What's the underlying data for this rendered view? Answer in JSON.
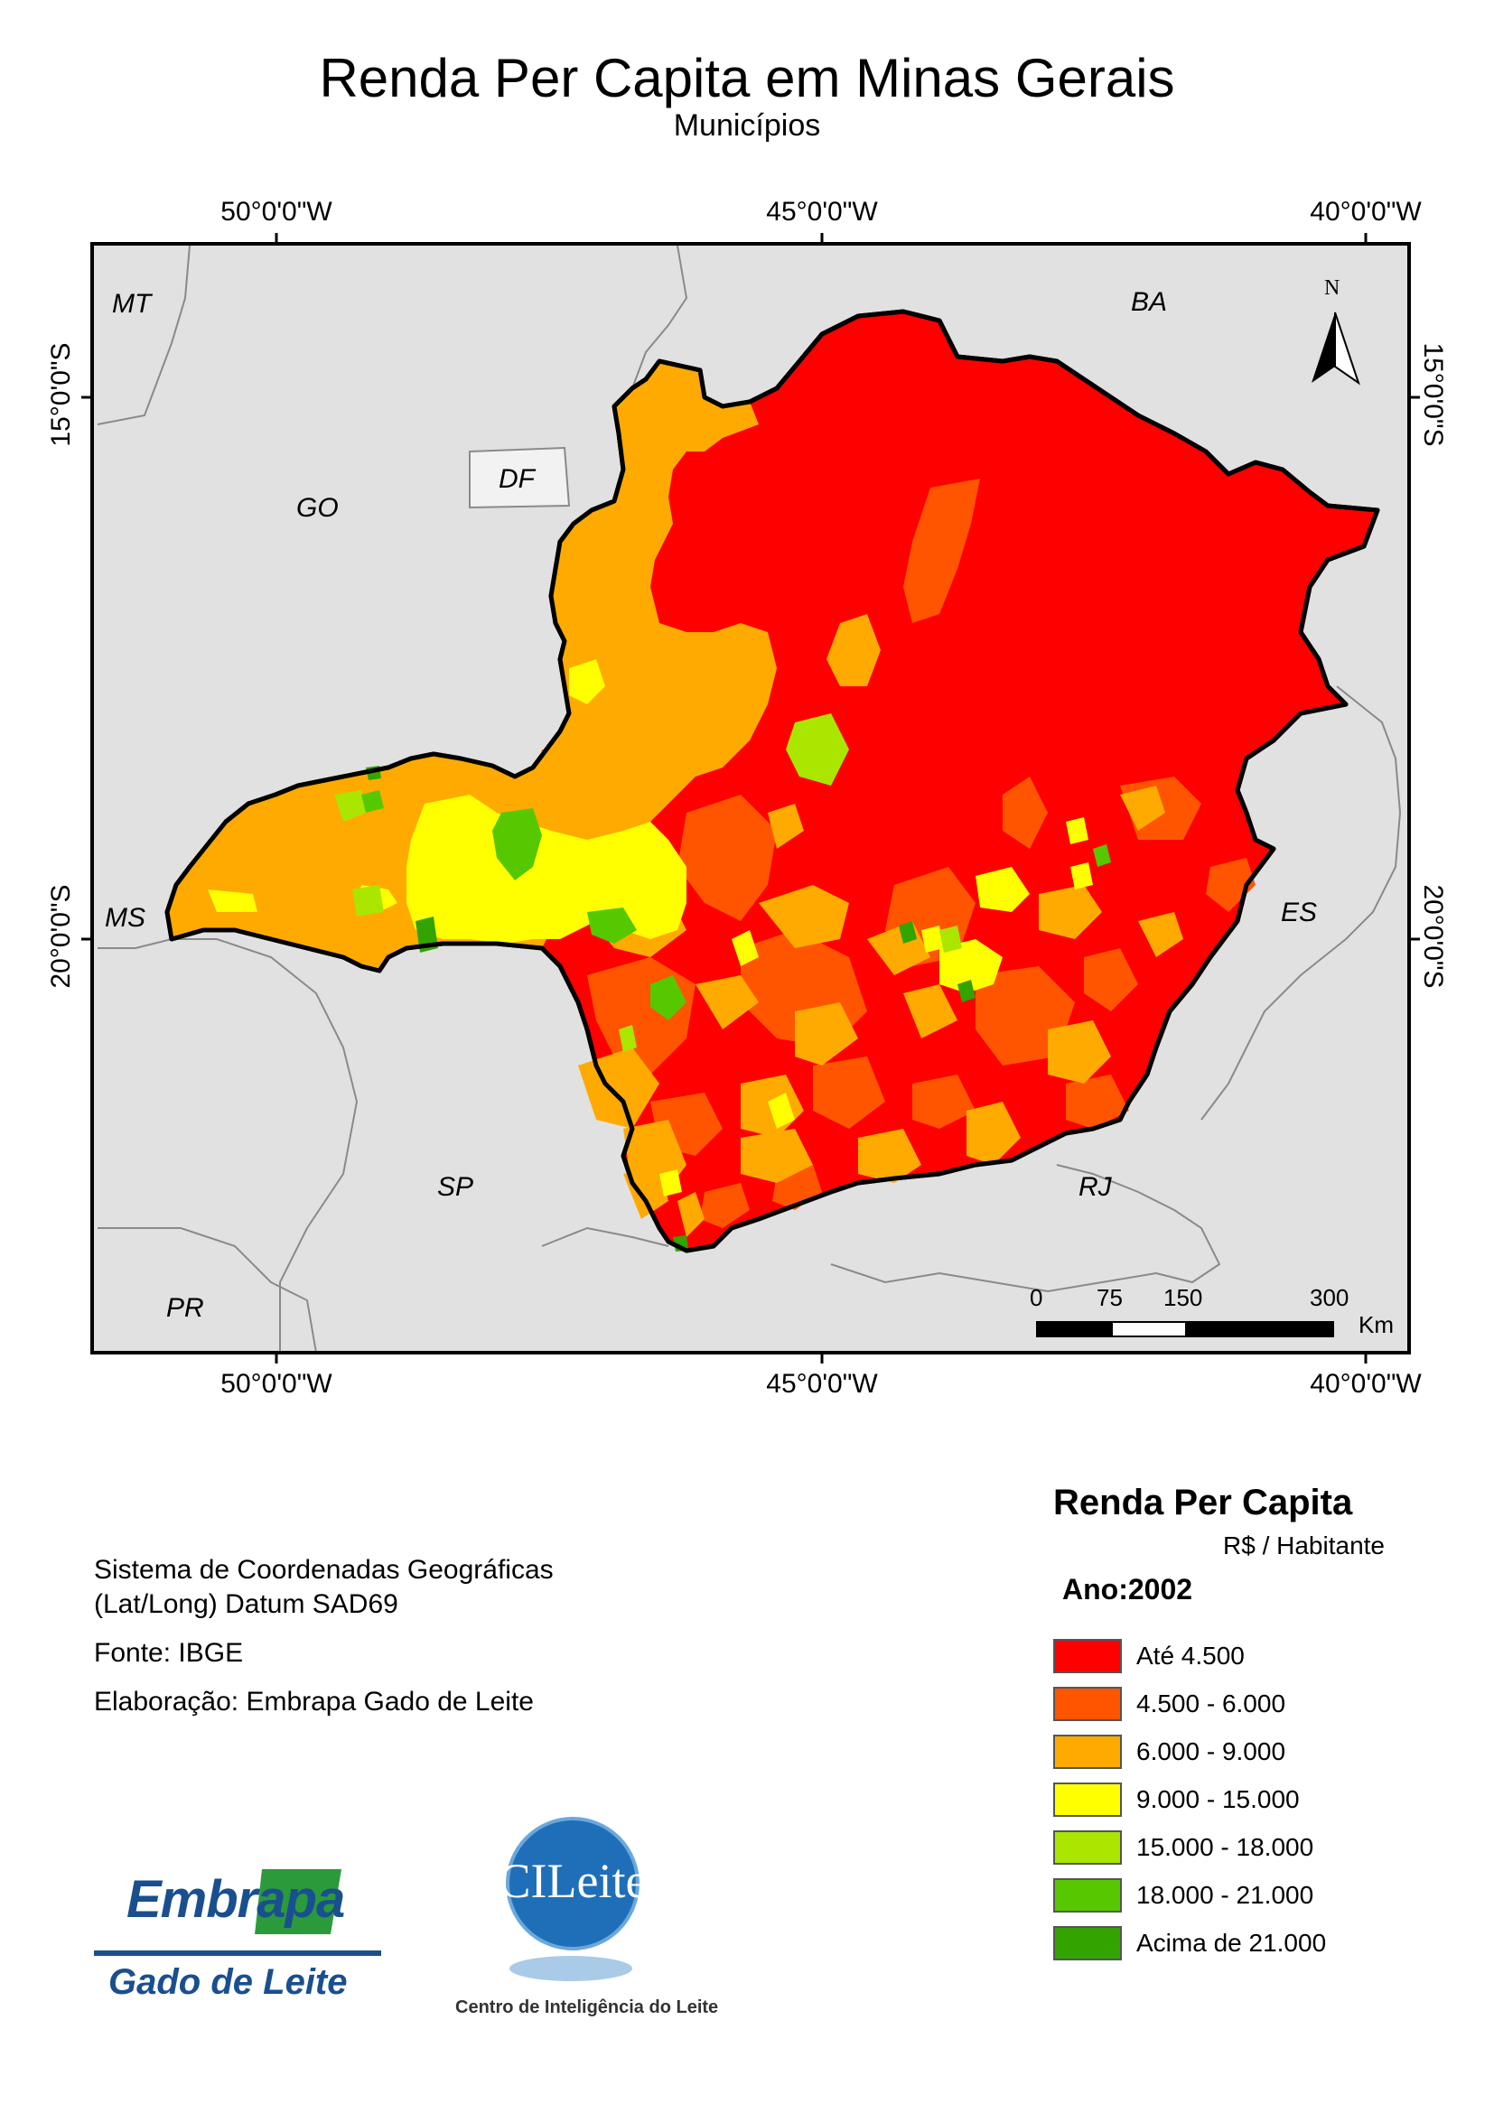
{
  "header": {
    "title": "Renda Per Capita em Minas Gerais",
    "subtitle": "Municípios"
  },
  "grid_labels": {
    "lon": [
      "50°0'0\"W",
      "45°0'0\"W",
      "40°0'0\"W"
    ],
    "lat": [
      "15°0'0\"S",
      "20°0'0\"S"
    ]
  },
  "states": {
    "MT": "MT",
    "BA": "BA",
    "GO": "GO",
    "DF": "DF",
    "MS": "MS",
    "ES": "ES",
    "SP": "SP",
    "RJ": "RJ",
    "PR": "PR"
  },
  "north_arrow": {
    "label": "N"
  },
  "scale_bar": {
    "ticks": [
      "0",
      "75",
      "150",
      "300"
    ],
    "unit": "Km"
  },
  "info": {
    "crs_line1": "Sistema de Coordenadas Geográficas",
    "crs_line2": "(Lat/Long) Datum SAD69",
    "source": "Fonte: IBGE",
    "author": "Elaboração: Embrapa Gado de Leite"
  },
  "legend": {
    "title": "Renda Per Capita",
    "unit": "R$ / Habitante",
    "year": "Ano:2002",
    "classes": [
      {
        "label": "Até 4.500",
        "color": "#ff0000"
      },
      {
        "label": "4.500 - 6.000",
        "color": "#ff5500"
      },
      {
        "label": "6.000 - 9.000",
        "color": "#ffaa00"
      },
      {
        "label": "9.000 - 15.000",
        "color": "#ffff00"
      },
      {
        "label": "15.000 - 18.000",
        "color": "#aae600"
      },
      {
        "label": "18.000 - 21.000",
        "color": "#55c800"
      },
      {
        "label": "Acima de 21.000",
        "color": "#33a300"
      }
    ]
  },
  "logos": {
    "embrapa_word": "Embrapa",
    "embrapa_sub": "Gado de Leite",
    "cileite_word": "CILeite",
    "cileite_sub": "Centro de Inteligência do Leite"
  }
}
